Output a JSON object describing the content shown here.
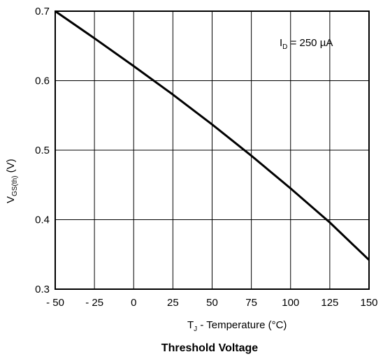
{
  "chart_data": {
    "type": "line",
    "title": "Threshold Voltage",
    "xlabel": {
      "main": "T",
      "sub": "J",
      "rest": " - Temperature (°C)"
    },
    "ylabel": {
      "main": "V",
      "sub": "GS(th)",
      "rest": " (V)"
    },
    "annotation": {
      "main": "I",
      "sub": "D",
      "rest": " = 250 µA"
    },
    "xlim": [
      -50,
      150
    ],
    "ylim": [
      0.3,
      0.7
    ],
    "x_ticks": [
      -50,
      -25,
      0,
      25,
      50,
      75,
      100,
      125,
      150
    ],
    "x_tick_labels": [
      "- 50",
      "- 25",
      "0",
      "25",
      "50",
      "75",
      "100",
      "125",
      "150"
    ],
    "y_ticks": [
      0.3,
      0.4,
      0.5,
      0.6,
      0.7
    ],
    "y_tick_labels": [
      "0.3",
      "0.4",
      "0.5",
      "0.6",
      "0.7"
    ],
    "grid": true,
    "series": [
      {
        "x": [
          -50,
          -25,
          0,
          25,
          50,
          75,
          100,
          125,
          150
        ],
        "values": [
          0.7,
          0.661,
          0.621,
          0.58,
          0.537,
          0.492,
          0.445,
          0.396,
          0.342
        ]
      }
    ]
  }
}
